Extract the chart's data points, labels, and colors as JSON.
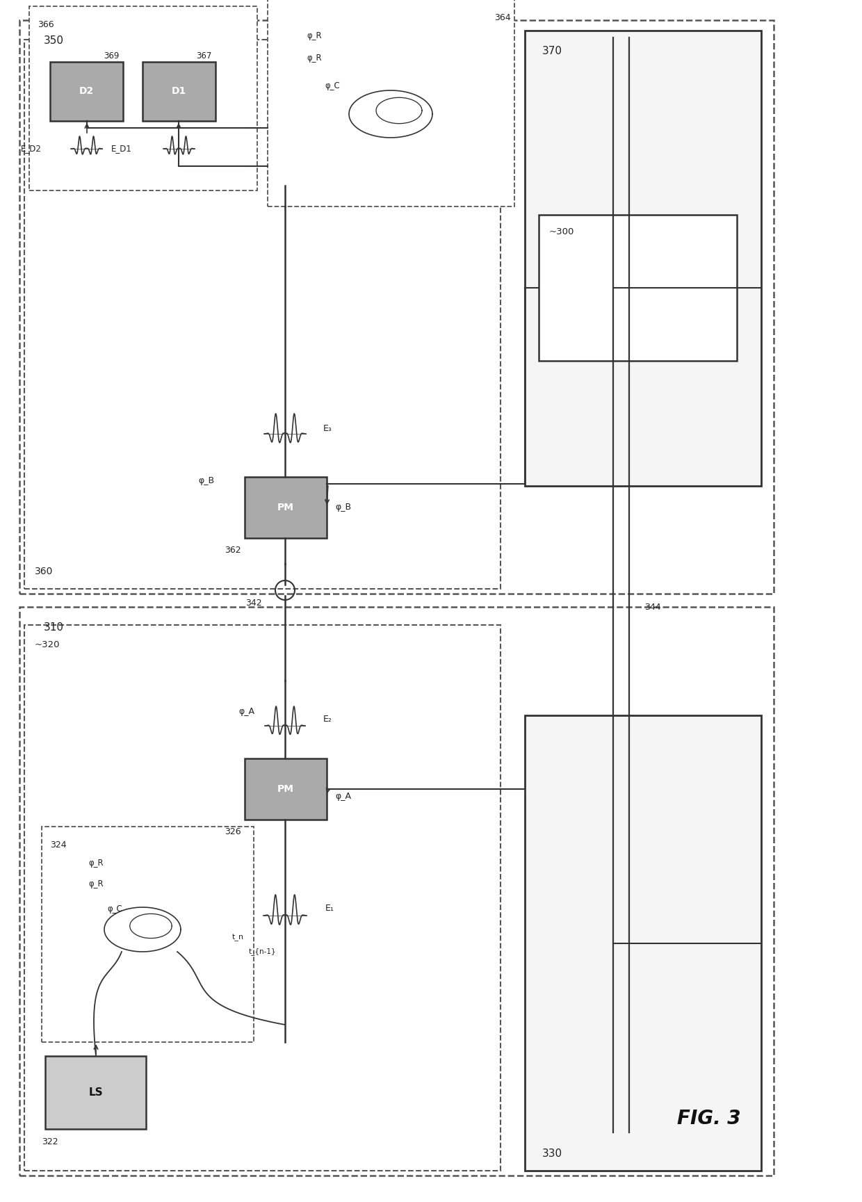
{
  "fig_label": "FIG. 3",
  "bg_color": "#ffffff",
  "line_color": "#333333",
  "label_350": "350",
  "label_310": "310",
  "label_360": "360",
  "label_320": "~320",
  "label_330": "330",
  "label_370": "370",
  "label_300": "~300",
  "label_342": "342",
  "label_344": "344",
  "label_322": "322",
  "label_324": "324",
  "label_326": "326",
  "label_362": "362",
  "label_364": "364",
  "label_366": "366",
  "label_367": "367",
  "label_369": "369",
  "label_LS": "LS",
  "label_PM": "PM",
  "label_D1": "D1",
  "label_D2": "D2",
  "label_phi_A": "φ_A",
  "label_phi_B": "φ_B",
  "label_phi_C": "φ_C",
  "label_phi_R": "φ_R",
  "label_E1": "E₁",
  "label_E2": "E₂",
  "label_E3": "E₃",
  "label_ED1": "E_D1",
  "label_ED2": "E_D2",
  "label_tn": "t_n",
  "label_tn1": "t_{n-1}"
}
